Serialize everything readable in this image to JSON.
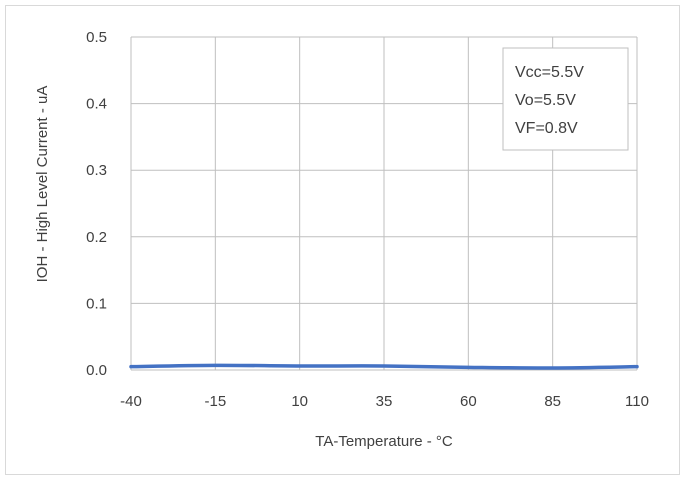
{
  "chart_data": {
    "type": "line",
    "xlabel": "TA-Temperature - °C",
    "ylabel": "IOH - High Level Current - uA",
    "xlim": [
      -40,
      110
    ],
    "ylim": [
      0.0,
      0.5
    ],
    "x_ticks": [
      "-40",
      "-15",
      "10",
      "35",
      "60",
      "85",
      "110"
    ],
    "y_ticks": [
      "0.0",
      "0.1",
      "0.2",
      "0.3",
      "0.4",
      "0.5"
    ],
    "grid": true,
    "annotations": [
      "Vcc=5.5V",
      "Vo=5.5V",
      "VF=0.8V"
    ],
    "series": [
      {
        "color": "#4472c4",
        "x": [
          -40,
          -15,
          10,
          35,
          60,
          85,
          110
        ],
        "y": [
          0.005,
          0.007,
          0.006,
          0.006,
          0.004,
          0.003,
          0.005
        ]
      }
    ]
  }
}
